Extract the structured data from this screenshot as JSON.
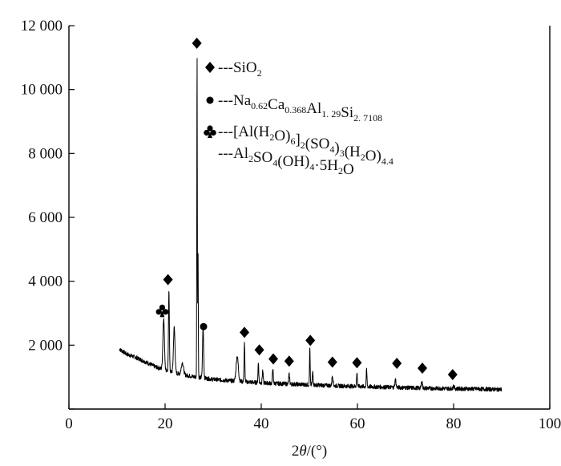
{
  "chart_data": {
    "type": "line",
    "xlabel_parts": [
      "2",
      "θ",
      "/(°)"
    ],
    "xlim": [
      0,
      100
    ],
    "ylim": [
      0,
      12000
    ],
    "x_ticks": [
      0,
      20,
      40,
      60,
      80,
      100
    ],
    "y_ticks": [
      0,
      2000,
      4000,
      6000,
      8000,
      10000,
      12000
    ],
    "x_tick_labels": [
      "0",
      "20",
      "40",
      "60",
      "80",
      "100"
    ],
    "y_tick_labels": [
      "",
      "2 000",
      "4 000",
      "6 000",
      "8 000",
      "10 000",
      "12 000"
    ],
    "grid": false,
    "legend_position": "top-right",
    "legend": [
      {
        "symbol": "diamond",
        "dash": "---",
        "parts": [
          {
            "t": "SiO"
          },
          {
            "t": "2",
            "sub": true
          }
        ]
      },
      {
        "symbol": "circle",
        "dash": "---",
        "parts": [
          {
            "t": "Na"
          },
          {
            "t": "0.62",
            "sub": true
          },
          {
            "t": "Ca"
          },
          {
            "t": "0.368",
            "sub": true
          },
          {
            "t": "Al"
          },
          {
            "t": "1. 29",
            "sub": true
          },
          {
            "t": "Si"
          },
          {
            "t": "2. 7108",
            "sub": true
          }
        ]
      },
      {
        "symbol": "club",
        "dash": "---",
        "parts": [
          {
            "t": "[Al(H"
          },
          {
            "t": "2",
            "sub": true
          },
          {
            "t": "O)"
          },
          {
            "t": "6",
            "sub": true
          },
          {
            "t": "]"
          },
          {
            "t": "2",
            "sub": true
          },
          {
            "t": "(SO"
          },
          {
            "t": "4",
            "sub": true
          },
          {
            "t": ")"
          },
          {
            "t": "3",
            "sub": true
          },
          {
            "t": "(H"
          },
          {
            "t": "2",
            "sub": true
          },
          {
            "t": "O)"
          },
          {
            "t": "4.4",
            "sub": true
          }
        ]
      },
      {
        "symbol": "none",
        "dash": "---",
        "parts": [
          {
            "t": "Al"
          },
          {
            "t": "2",
            "sub": true
          },
          {
            "t": "SO"
          },
          {
            "t": "4",
            "sub": true
          },
          {
            "t": "(OH)"
          },
          {
            "t": "4",
            "sub": true
          },
          {
            "t": "·5H"
          },
          {
            "t": "2",
            "sub": true
          },
          {
            "t": "O"
          }
        ]
      }
    ],
    "background": [
      [
        10.5,
        1880
      ],
      [
        12,
        1720
      ],
      [
        14,
        1610
      ],
      [
        16,
        1470
      ],
      [
        18,
        1320
      ],
      [
        22,
        1130
      ],
      [
        26,
        1010
      ],
      [
        30,
        930
      ],
      [
        35,
        870
      ],
      [
        40,
        820
      ],
      [
        45,
        790
      ],
      [
        50,
        760
      ],
      [
        55,
        730
      ],
      [
        60,
        710
      ],
      [
        65,
        690
      ],
      [
        70,
        670
      ],
      [
        75,
        650
      ],
      [
        80,
        640
      ],
      [
        85,
        630
      ],
      [
        90,
        610
      ]
    ],
    "peaks": [
      {
        "x": 19.7,
        "y": 2850,
        "w": 0.35
      },
      {
        "x": 20.8,
        "y": 3750,
        "w": 0.2
      },
      {
        "x": 21.9,
        "y": 2550,
        "w": 0.35
      },
      {
        "x": 23.6,
        "y": 1450,
        "w": 0.5
      },
      {
        "x": 26.65,
        "y": 11150,
        "w": 0.12
      },
      {
        "x": 26.85,
        "y": 4950,
        "w": 0.12
      },
      {
        "x": 27.9,
        "y": 2550,
        "w": 0.25
      },
      {
        "x": 35.0,
        "y": 1650,
        "w": 0.5
      },
      {
        "x": 36.5,
        "y": 2050,
        "w": 0.18
      },
      {
        "x": 39.4,
        "y": 1450,
        "w": 0.18
      },
      {
        "x": 40.3,
        "y": 1200,
        "w": 0.2
      },
      {
        "x": 42.4,
        "y": 1300,
        "w": 0.18
      },
      {
        "x": 45.8,
        "y": 1080,
        "w": 0.22
      },
      {
        "x": 50.1,
        "y": 1900,
        "w": 0.15
      },
      {
        "x": 50.7,
        "y": 1150,
        "w": 0.2
      },
      {
        "x": 54.8,
        "y": 1050,
        "w": 0.25
      },
      {
        "x": 59.9,
        "y": 1130,
        "w": 0.18
      },
      {
        "x": 61.9,
        "y": 1220,
        "w": 0.18
      },
      {
        "x": 67.9,
        "y": 930,
        "w": 0.25
      },
      {
        "x": 73.4,
        "y": 870,
        "w": 0.25
      },
      {
        "x": 80.0,
        "y": 740,
        "w": 0.25
      }
    ],
    "markers": [
      {
        "symbol": "diamond",
        "x": 26.6,
        "y": 11450
      },
      {
        "symbol": "diamond",
        "x": 20.6,
        "y": 4050
      },
      {
        "symbol": "club",
        "x": 19.4,
        "y": 3080
      },
      {
        "symbol": "circle",
        "x": 28.0,
        "y": 2580
      },
      {
        "symbol": "diamond",
        "x": 36.5,
        "y": 2400
      },
      {
        "symbol": "diamond",
        "x": 39.6,
        "y": 1850
      },
      {
        "symbol": "diamond",
        "x": 42.5,
        "y": 1570
      },
      {
        "symbol": "diamond",
        "x": 45.8,
        "y": 1500
      },
      {
        "symbol": "diamond",
        "x": 50.2,
        "y": 2150
      },
      {
        "symbol": "diamond",
        "x": 54.8,
        "y": 1470
      },
      {
        "symbol": "diamond",
        "x": 59.9,
        "y": 1450
      },
      {
        "symbol": "diamond",
        "x": 68.2,
        "y": 1430
      },
      {
        "symbol": "diamond",
        "x": 73.5,
        "y": 1280
      },
      {
        "symbol": "diamond",
        "x": 79.8,
        "y": 1080
      }
    ]
  }
}
